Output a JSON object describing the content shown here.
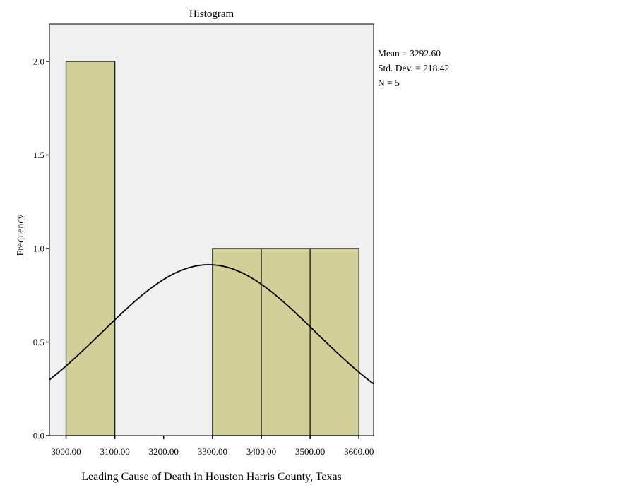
{
  "chart_data": {
    "type": "bar",
    "title": "Histogram",
    "xlabel": "Leading Cause of Death in Houston Harris County, Texas",
    "ylabel": "Frequency",
    "xlim": [
      2966,
      3630
    ],
    "ylim": [
      0,
      2.2
    ],
    "x_ticks": [
      3000,
      3100,
      3200,
      3300,
      3400,
      3500,
      3600
    ],
    "x_tick_labels": [
      "3000.00",
      "3100.00",
      "3200.00",
      "3300.00",
      "3400.00",
      "3500.00",
      "3600.00"
    ],
    "y_ticks": [
      0,
      0.5,
      1.0,
      1.5,
      2.0
    ],
    "y_tick_labels": [
      "0.0",
      "0.5",
      "1.0",
      "1.5",
      "2.0"
    ],
    "bins": [
      {
        "x0": 3000,
        "x1": 3100,
        "count": 2
      },
      {
        "x0": 3300,
        "x1": 3400,
        "count": 1
      },
      {
        "x0": 3400,
        "x1": 3500,
        "count": 1
      },
      {
        "x0": 3500,
        "x1": 3600,
        "count": 1
      }
    ],
    "bin_width": 100,
    "normal_curve": {
      "mean": 3292.6,
      "sd": 218.42,
      "n": 5
    },
    "grid": false,
    "stats_lines": [
      "Mean = 3292.60",
      "Std. Dev. = 218.42",
      "N = 5"
    ],
    "colors": {
      "bar_fill": "#d3cf99",
      "bar_stroke": "#1a1a1a",
      "plot_bg": "#f0f0f0",
      "curve": "#000000"
    }
  }
}
